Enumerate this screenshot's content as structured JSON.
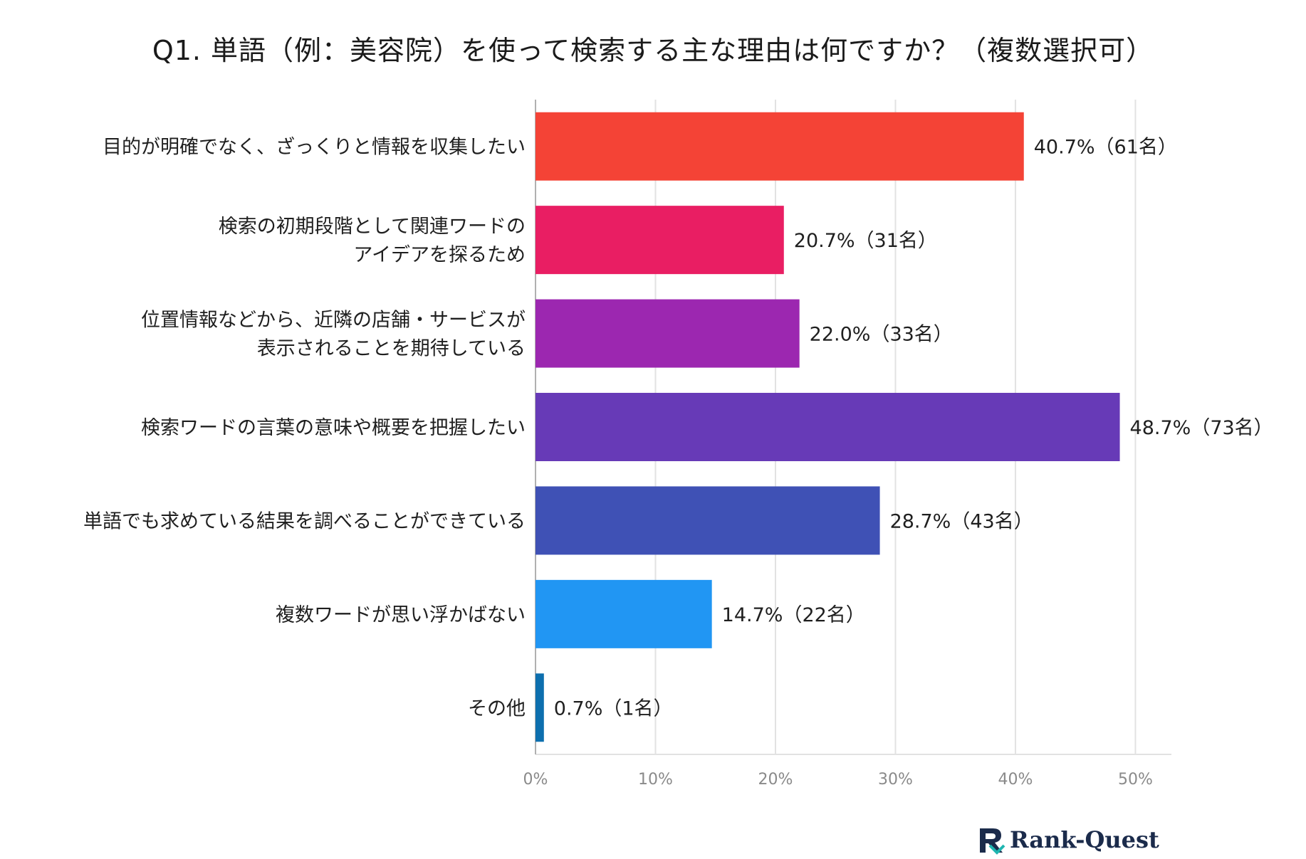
{
  "chart_data": {
    "type": "bar",
    "orientation": "horizontal",
    "title": "Q1. 単語（例：美容院）を使って検索する主な理由は何ですか？（複数選択可）",
    "categories": [
      [
        "目的が明確でなく、ざっくりと情報を収集したい"
      ],
      [
        "検索の初期段階として関連ワードの",
        "アイデアを探るため"
      ],
      [
        "位置情報などから、近隣の店舗・サービスが",
        "表示されることを期待している"
      ],
      [
        "検索ワードの言葉の意味や概要を把握したい"
      ],
      [
        "単語でも求めている結果を調べることができている"
      ],
      [
        "複数ワードが思い浮かばない"
      ],
      [
        "その他"
      ]
    ],
    "values": [
      40.7,
      20.7,
      22.0,
      48.7,
      28.7,
      14.7,
      0.7
    ],
    "value_labels": [
      "40.7%（61名）",
      "20.7%（31名）",
      "22.0%（33名）",
      "48.7%（73名）",
      "28.7%（43名）",
      "14.7%（22名）",
      "0.7%（1名）"
    ],
    "colors": [
      "#f44336",
      "#e91e63",
      "#9c27b0",
      "#673ab7",
      "#3f51b5",
      "#2196f3",
      "#0d6fae"
    ],
    "xlim": [
      0,
      53
    ],
    "x_ticks": [
      0,
      10,
      20,
      30,
      40,
      50
    ],
    "x_tick_labels": [
      "0%",
      "10%",
      "20%",
      "30%",
      "40%",
      "50%"
    ],
    "grid": true,
    "xlabel": "",
    "ylabel": ""
  },
  "brand": {
    "name": "Rank-Quest",
    "accent": "#1fb5b0",
    "dark": "#1b2b4b"
  }
}
